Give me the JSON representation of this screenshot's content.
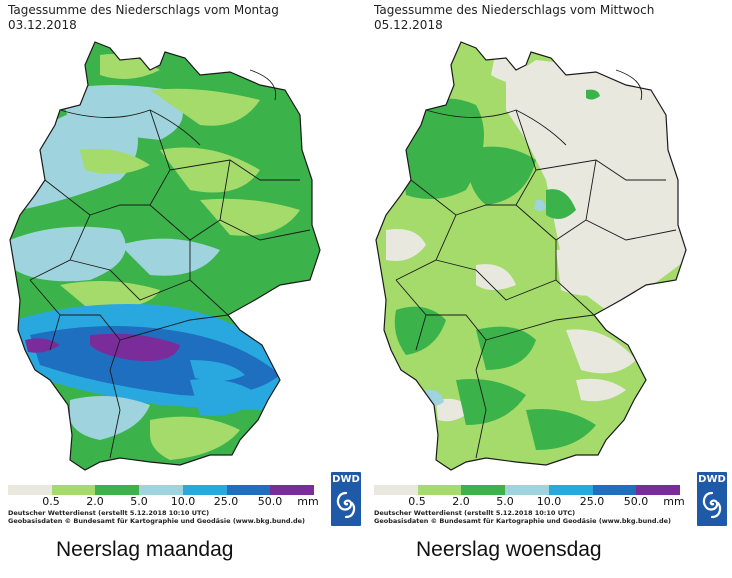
{
  "colors": {
    "c0": "#e8e8df",
    "c1": "#a4db6b",
    "c2": "#3bb34a",
    "c3": "#9fd3dd",
    "c4": "#29a8e0",
    "c5": "#1f6fc0",
    "c6": "#7a2d9a",
    "border": "#1a1a1a",
    "dwd_blue": "#1f5aa8"
  },
  "legend": {
    "labels": [
      "0.5",
      "2.0",
      "5.0",
      "10.0",
      "25.0",
      "50.0",
      "mm"
    ]
  },
  "credits": {
    "line1": "Deutscher Wetterdienst (erstellt 5.12.2018 10:10 UTC)",
    "line2": "Geobasisdaten © Bundesamt für Kartographie und Geodäsie (www.bkg.bund.de)"
  },
  "logo": {
    "text": "DWD",
    "icon": "dwd-swirl-icon"
  },
  "panels": [
    {
      "title": "Tagessumme des Niederschlags vom Montag",
      "date": "03.12.2018",
      "caption": "Neerslag maandag"
    },
    {
      "title": "Tagessumme des Niederschlags vom Mittwoch",
      "date": "05.12.2018",
      "caption": "Neerslag woensdag"
    }
  ]
}
